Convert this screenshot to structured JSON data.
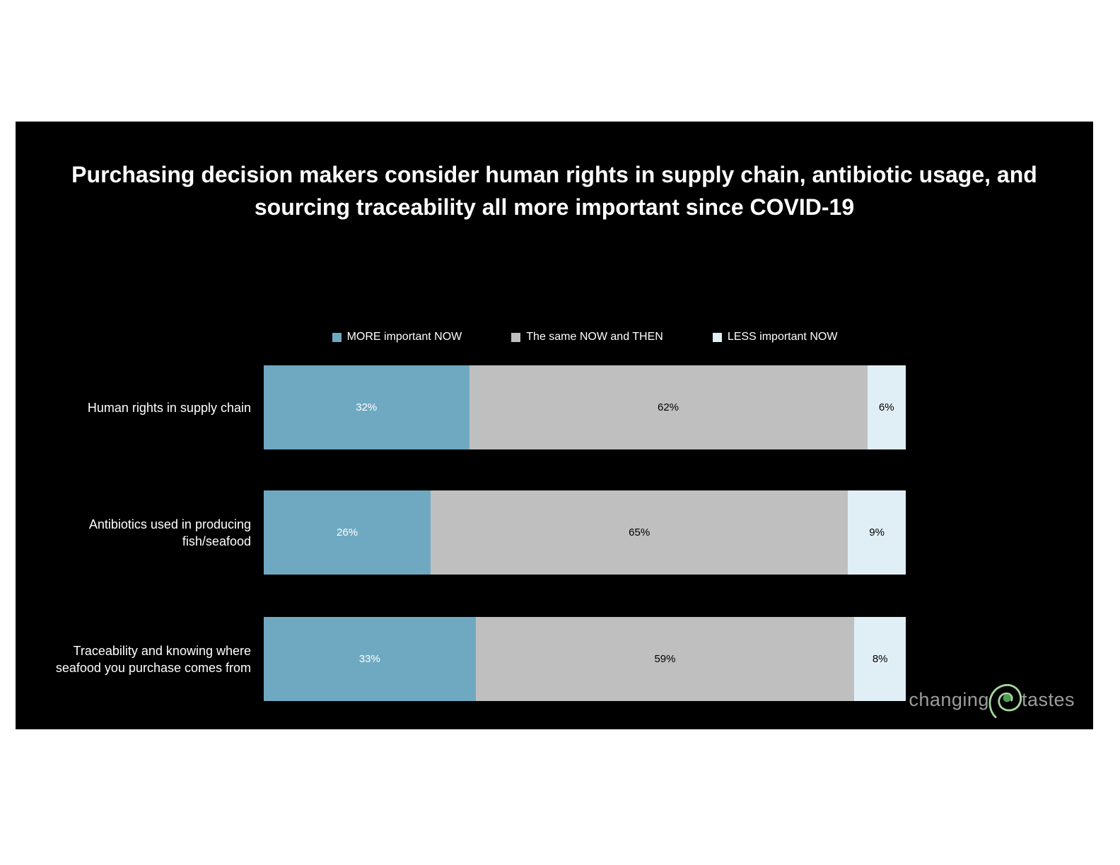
{
  "colors": {
    "page_background": "#ffffff",
    "slide_background": "#000000",
    "title_text": "#ffffff",
    "label_text": "#ffffff"
  },
  "title": "Purchasing decision makers consider human rights in supply chain, antibiotic usage, and\nsourcing traceability all more important since COVID-19",
  "chart_data": {
    "type": "bar",
    "orientation": "horizontal-stacked",
    "stacked": true,
    "unit": "%",
    "xlim": [
      0,
      100
    ],
    "grid": false,
    "legend_position": "top",
    "categories": [
      "Human rights in supply chain",
      "Antibiotics used in producing\nfish/seafood",
      "Traceability and knowing where\nseafood you purchase comes from"
    ],
    "series": [
      {
        "name": "MORE important NOW",
        "color": "#6FA9C1",
        "label_color": "#ffffff",
        "values": [
          32,
          26,
          33
        ]
      },
      {
        "name": "The same NOW and THEN",
        "color": "#BFBFBF",
        "label_color": "#000000",
        "values": [
          62,
          65,
          59
        ]
      },
      {
        "name": "LESS important NOW",
        "color": "#E0EFF5",
        "label_color": "#000000",
        "values": [
          6,
          9,
          8
        ]
      }
    ]
  },
  "logo": {
    "word1": "changing",
    "word2": "tastes",
    "text_color": "#9c9c9c",
    "swirl_ring_color": "#A6D79F",
    "swirl_dot_color": "#4F9D52"
  }
}
